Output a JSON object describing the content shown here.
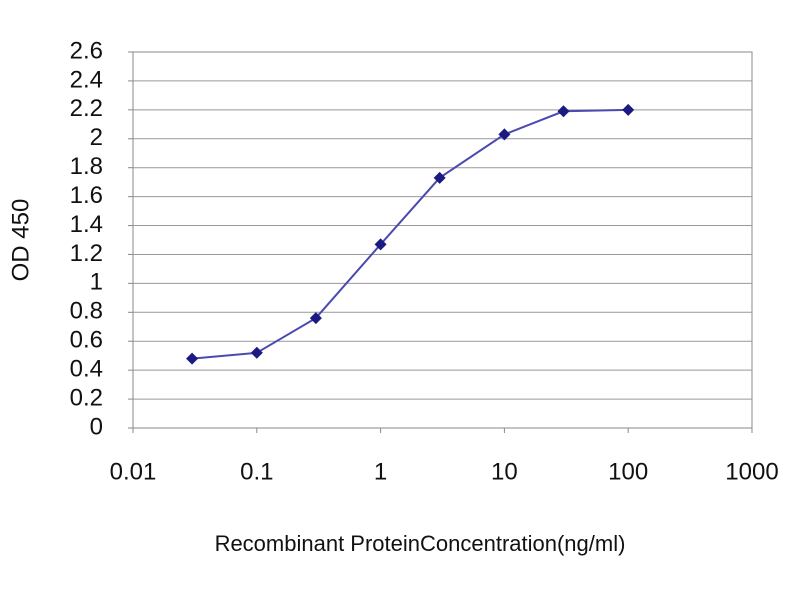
{
  "chart_data": {
    "type": "line",
    "x_label": "Recombinant ProteinConcentration(ng/ml)",
    "y_label": "OD 450",
    "x": [
      0.03,
      0.1,
      0.3,
      1,
      3,
      10,
      30,
      100
    ],
    "series": [
      {
        "color": "#1a1a80",
        "line_color": "#4a4ab0",
        "values": [
          0.48,
          0.52,
          0.76,
          1.27,
          1.73,
          2.03,
          2.19,
          2.2
        ]
      }
    ],
    "xscale": "log",
    "xlim": [
      0.01,
      1000
    ],
    "xticks": [
      0.01,
      0.1,
      1,
      10,
      100,
      1000
    ],
    "ylim": [
      0,
      2.6
    ],
    "yticks": [
      0,
      0.2,
      0.4,
      0.6,
      0.8,
      1,
      1.2,
      1.4,
      1.6,
      1.8,
      2,
      2.2,
      2.4,
      2.6
    ],
    "grid": true
  }
}
